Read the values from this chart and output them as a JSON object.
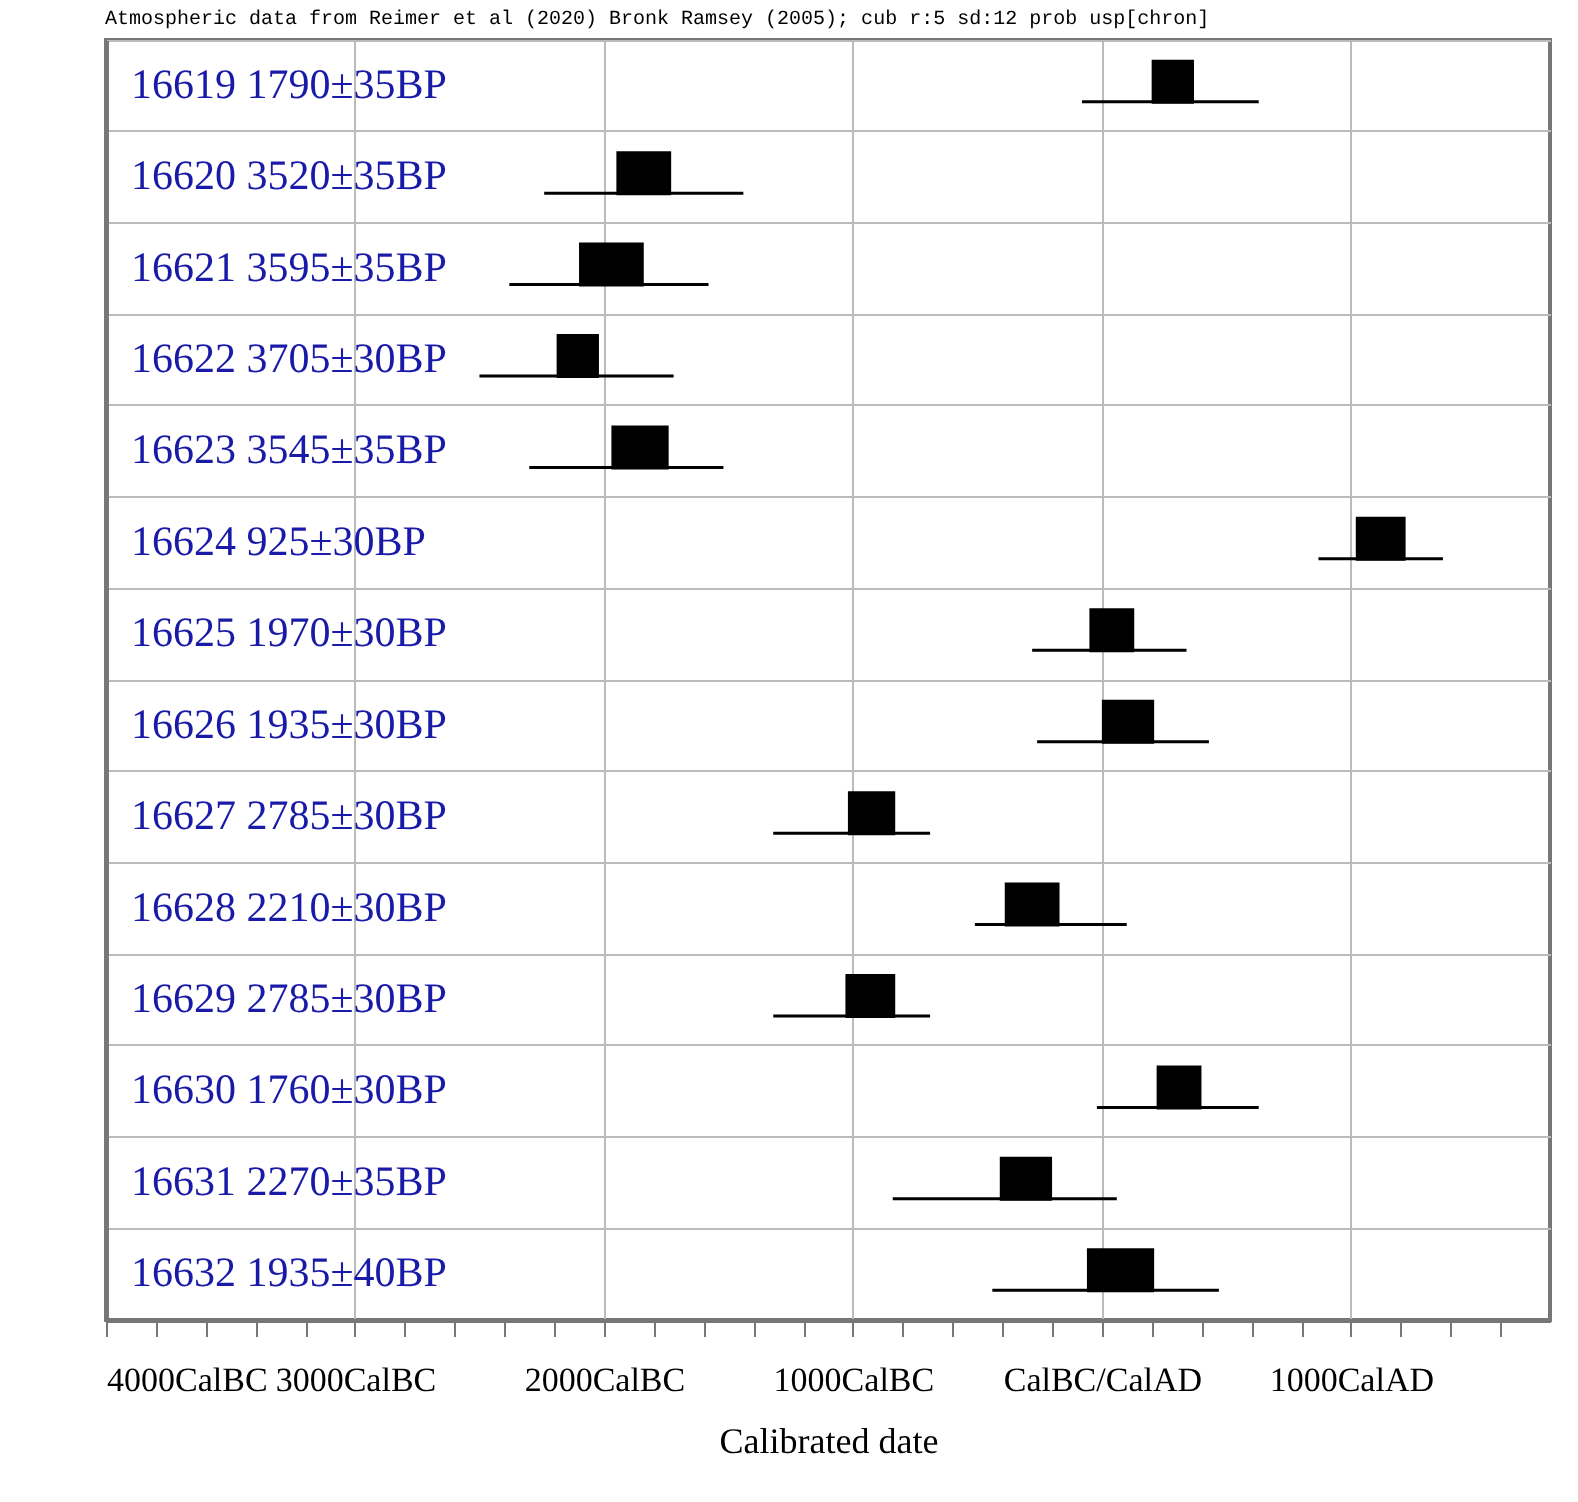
{
  "chart_data": {
    "type": "bar",
    "orientation": "horizontal",
    "title": "Atmospheric data from Reimer et al (2020) Bronk Ramsey (2005); cub r:5 sd:12 prob usp[chron]",
    "xlabel": "Calibrated date",
    "categories": [
      "16619  1790±35BP",
      "16620  3520±35BP",
      "16621  3595±35BP",
      "16622  3705±30BP",
      "16623  3545±35BP",
      "16624  925±30BP",
      "16625  1970±30BP",
      "16626  1935±30BP",
      "16627  2785±30BP",
      "16628  2210±30BP",
      "16629  2785±30BP",
      "16630  1760±30BP",
      "16631  2270±35BP",
      "16632  1935±40BP"
    ],
    "series": [
      {
        "color": "#000000",
        "base": [
          200,
          -1950,
          -2100,
          -2190,
          -1970,
          1020,
          -50,
          0,
          -1020,
          -390,
          -1030,
          220,
          -410,
          -60
        ],
        "values": [
          170,
          220,
          260,
          170,
          230,
          200,
          180,
          210,
          190,
          220,
          200,
          180,
          210,
          270
        ]
      },
      {
        "color": "#000000",
        "base": [
          -80,
          -2240,
          -2380,
          -2500,
          -2300,
          870,
          -280,
          -260,
          -1320,
          -510,
          -1320,
          -20,
          -840,
          -440
        ],
        "values": [
          710,
          800,
          800,
          780,
          780,
          500,
          620,
          690,
          630,
          610,
          630,
          650,
          900,
          910
        ]
      }
    ],
    "xlim": [
      -4000,
      1800
    ],
    "xticks": [
      {
        "value": -4000,
        "label": "4000CalBC"
      },
      {
        "value": -3800,
        "label": null
      },
      {
        "value": -3600,
        "label": null
      },
      {
        "value": -3400,
        "label": null
      },
      {
        "value": -3200,
        "label": null
      },
      {
        "value": -3000,
        "label": "3000CalBC"
      },
      {
        "value": -2800,
        "label": null
      },
      {
        "value": -2600,
        "label": null
      },
      {
        "value": -2400,
        "label": null
      },
      {
        "value": -2200,
        "label": null
      },
      {
        "value": -2000,
        "label": "2000CalBC"
      },
      {
        "value": -1800,
        "label": null
      },
      {
        "value": -1600,
        "label": null
      },
      {
        "value": -1400,
        "label": null
      },
      {
        "value": -1200,
        "label": null
      },
      {
        "value": -1000,
        "label": "1000CalBC"
      },
      {
        "value": -800,
        "label": null
      },
      {
        "value": -600,
        "label": null
      },
      {
        "value": -400,
        "label": null
      },
      {
        "value": -200,
        "label": null
      },
      {
        "value": 0,
        "label": "CalBC/CalAD"
      },
      {
        "value": 200,
        "label": null
      },
      {
        "value": 400,
        "label": null
      },
      {
        "value": 600,
        "label": null
      },
      {
        "value": 800,
        "label": null
      },
      {
        "value": 1000,
        "label": "1000CalAD"
      },
      {
        "value": 1200,
        "label": null
      },
      {
        "value": 1400,
        "label": null
      },
      {
        "value": 1600,
        "label": null
      }
    ],
    "grid": true
  }
}
